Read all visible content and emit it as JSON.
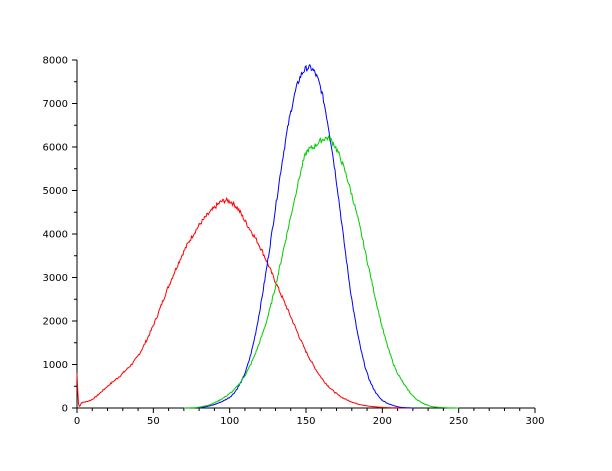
{
  "chart_data": {
    "type": "line",
    "title": "",
    "xlabel": "",
    "ylabel": "",
    "xlim": [
      0,
      300
    ],
    "ylim": [
      0,
      8000
    ],
    "grid": false,
    "legend": "none",
    "x_ticks": [
      0,
      50,
      100,
      150,
      200,
      250,
      300
    ],
    "x_tick_labels": [
      "0",
      "50",
      "100",
      "150",
      "200",
      "250",
      "300"
    ],
    "y_ticks": [
      0,
      1000,
      2000,
      3000,
      4000,
      5000,
      6000,
      7000,
      8000
    ],
    "y_tick_labels": [
      "0",
      "1000",
      "2000",
      "3000",
      "4000",
      "5000",
      "6000",
      "7000",
      "8000"
    ],
    "series": [
      {
        "color": "#ff0000",
        "x": [
          0,
          1,
          3,
          10,
          20,
          30,
          40,
          50,
          60,
          70,
          80,
          90,
          95,
          100,
          105,
          110,
          120,
          130,
          140,
          150,
          160,
          170,
          180,
          190,
          200,
          210,
          220
        ],
        "y": [
          800,
          100,
          120,
          200,
          500,
          800,
          1200,
          1900,
          2800,
          3600,
          4200,
          4600,
          4750,
          4750,
          4600,
          4300,
          3700,
          2900,
          2100,
          1300,
          700,
          330,
          140,
          50,
          15,
          4,
          0
        ]
      },
      {
        "color": "#0000ff",
        "x": [
          80,
          90,
          100,
          105,
          110,
          115,
          120,
          125,
          130,
          135,
          140,
          145,
          150,
          155,
          160,
          165,
          170,
          175,
          180,
          185,
          190,
          195,
          200,
          210,
          220
        ],
        "y": [
          0,
          80,
          250,
          450,
          800,
          1400,
          2300,
          3400,
          4600,
          5800,
          6800,
          7500,
          7800,
          7750,
          7300,
          6400,
          5200,
          3800,
          2500,
          1500,
          800,
          400,
          180,
          30,
          0
        ]
      },
      {
        "color": "#00cc00",
        "x": [
          70,
          80,
          90,
          100,
          105,
          110,
          115,
          120,
          125,
          130,
          135,
          140,
          145,
          150,
          155,
          160,
          165,
          170,
          175,
          180,
          185,
          190,
          195,
          200,
          205,
          210,
          220,
          230,
          240,
          250
        ],
        "y": [
          0,
          20,
          120,
          330,
          500,
          750,
          1100,
          1550,
          2100,
          2800,
          3600,
          4400,
          5200,
          5850,
          6000,
          6150,
          6200,
          5950,
          5500,
          4900,
          4200,
          3400,
          2600,
          1850,
          1250,
          800,
          280,
          60,
          10,
          0
        ]
      }
    ]
  }
}
